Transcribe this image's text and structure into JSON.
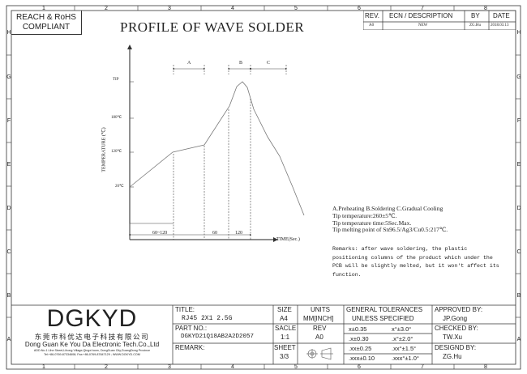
{
  "compliance": {
    "line1": "REACH & RoHS",
    "line2": "COMPLIANT"
  },
  "drawing_title": "PROFILE OF WAVE SOLDER",
  "revision_table": {
    "headers": {
      "rev": "REV.",
      "ecn": "ECN / DESCRIPTION",
      "by": "BY",
      "date": "DATE"
    },
    "row": {
      "rev": "A0",
      "ecn": "NEW",
      "by": "ZG.Hu",
      "date": "2018.03.13"
    }
  },
  "border": {
    "col_labels": [
      "1",
      "2",
      "3",
      "4",
      "5",
      "6",
      "7",
      "8"
    ],
    "row_labels": [
      "H",
      "G",
      "F",
      "E",
      "D",
      "C",
      "B",
      "A"
    ]
  },
  "chart_data": {
    "type": "line",
    "ylabel": "TEMPERATURE (℃)",
    "xlabel": "TIME(Sec.)",
    "y_ticks": [
      "TIP",
      "180℃",
      "120℃",
      "20℃"
    ],
    "phases": [
      "A",
      "B",
      "C"
    ],
    "time_segments": [
      "60~120",
      "60",
      "120"
    ]
  },
  "notes": {
    "phases_line": "A.Preheating  B.Soldering  C.Gradual Cooling",
    "tip_temp": "Tip temperature:260±5℃.",
    "tip_time": "Tip temperature time:5Sec.Max.",
    "melting": "Tip melting point of Sn96.5/Ag3/Cu0.5:217℃.",
    "remarks": [
      "Remarks: after wave soldering, the plastic",
      "positioning columns of the product  which under the",
      "PCB will be slightly melted, but it won't affect its",
      "function."
    ]
  },
  "company": {
    "logo": "DGKYD",
    "cn_name": "东莞市科优达电子科技有限公司",
    "en_name": "Dong Guan Ke You Da Electronic Tech.Co.,Ltd",
    "address": "ADD:No.1 Lihe Street,Lihong Village,Qingxi town, DongGuan City,GuangDong Province",
    "contact": "Tel:+86-0769-87334608; Fax:+86-0769-87847129 ; WWW.DGKYD.COM"
  },
  "title_block": {
    "title_label": "TITLE:",
    "title_value": "RJ45 2X1 2.5G",
    "part_label": "PART NO.:",
    "part_value": "DGKYD21Q18AB2A2D2057",
    "remark_label": "REMARK:",
    "size_label": "SIZE",
    "size_value": "A4",
    "units_label": "UNITS",
    "units_value": "MM[INCH]",
    "scale_label": "SACLE",
    "scale_value": "1:1",
    "rev_label": "REV",
    "rev_value": "A0",
    "sheet_label": "SHEET",
    "sheet_value": "3/3",
    "tol_title1": "GENERAL TOLERANCES",
    "tol_title2": "UNLESS SPECIFIED",
    "tol": [
      [
        "x±0.35",
        "x°±3.0°"
      ],
      [
        ".x±0.30",
        ".x°±2.0°"
      ],
      [
        ".xx±0.25",
        ".xx°±1.5°"
      ],
      [
        ".xxx±0.10",
        ".xxx°±1.0°"
      ]
    ],
    "approved_label": "APPROVED BY:",
    "approved_value": "JP.Gong",
    "checked_label": "CHECKED BY:",
    "checked_value": "TW.Xu",
    "design_label": "DESIGND BY:",
    "design_value": "ZG.Hu"
  }
}
